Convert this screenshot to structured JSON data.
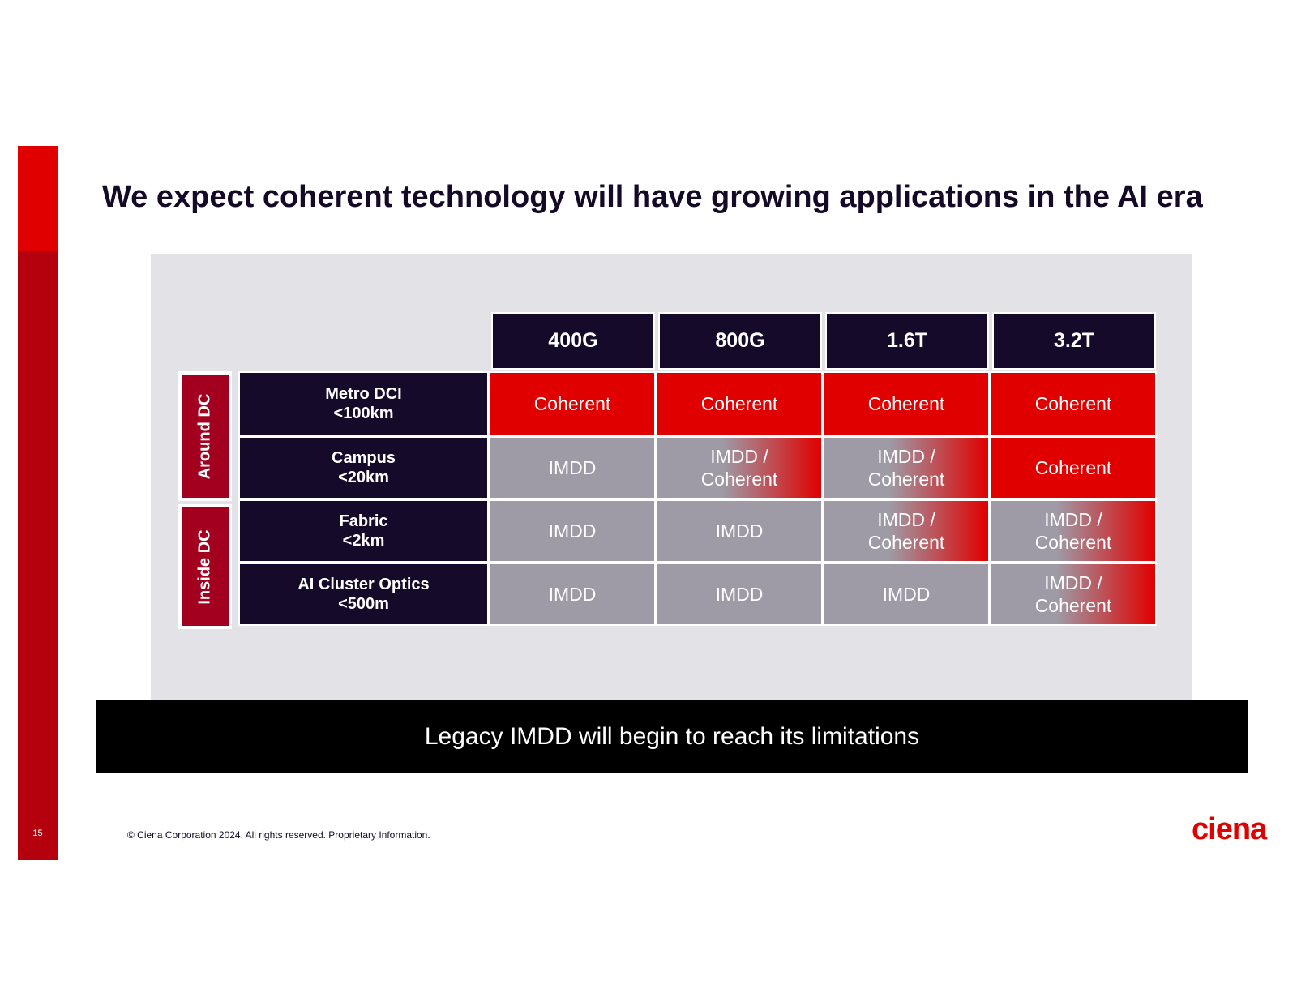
{
  "page_number": "15",
  "title": "We expect coherent technology will have growing applications in the AI era",
  "table": {
    "columns": [
      "400G",
      "800G",
      "1.6T",
      "3.2T"
    ],
    "groups": [
      "Around DC",
      "Inside DC"
    ],
    "rows": [
      {
        "label_line1": "Metro DCI",
        "label_line2": "<100km",
        "cells": [
          {
            "l1": "Coherent",
            "l2": "",
            "kind": "coherent"
          },
          {
            "l1": "Coherent",
            "l2": "",
            "kind": "coherent"
          },
          {
            "l1": "Coherent",
            "l2": "",
            "kind": "coherent"
          },
          {
            "l1": "Coherent",
            "l2": "",
            "kind": "coherent"
          }
        ]
      },
      {
        "label_line1": "Campus",
        "label_line2": "<20km",
        "cells": [
          {
            "l1": "IMDD",
            "l2": "",
            "kind": "imdd"
          },
          {
            "l1": "IMDD /",
            "l2": "Coherent",
            "kind": "mixed"
          },
          {
            "l1": "IMDD /",
            "l2": "Coherent",
            "kind": "mixed"
          },
          {
            "l1": "Coherent",
            "l2": "",
            "kind": "coherent"
          }
        ]
      },
      {
        "label_line1": "Fabric",
        "label_line2": "<2km",
        "cells": [
          {
            "l1": "IMDD",
            "l2": "",
            "kind": "imdd"
          },
          {
            "l1": "IMDD",
            "l2": "",
            "kind": "imdd"
          },
          {
            "l1": "IMDD /",
            "l2": "Coherent",
            "kind": "mixed"
          },
          {
            "l1": "IMDD /",
            "l2": "Coherent",
            "kind": "mixed"
          }
        ]
      },
      {
        "label_line1": "AI Cluster Optics",
        "label_line2": "<500m",
        "cells": [
          {
            "l1": "IMDD",
            "l2": "",
            "kind": "imdd"
          },
          {
            "l1": "IMDD",
            "l2": "",
            "kind": "imdd"
          },
          {
            "l1": "IMDD",
            "l2": "",
            "kind": "imdd"
          },
          {
            "l1": "IMDD /",
            "l2": "Coherent",
            "kind": "mixed"
          }
        ]
      }
    ]
  },
  "banner": "Legacy IMDD will begin to reach its limitations",
  "footer": "© Ciena Corporation 2024. All rights reserved. Proprietary Information.",
  "logo": "ciena",
  "colors": {
    "red": "#e00000",
    "dark_red": "#b5000e",
    "navy": "#160a2a",
    "gray": "#9e9aa6"
  }
}
